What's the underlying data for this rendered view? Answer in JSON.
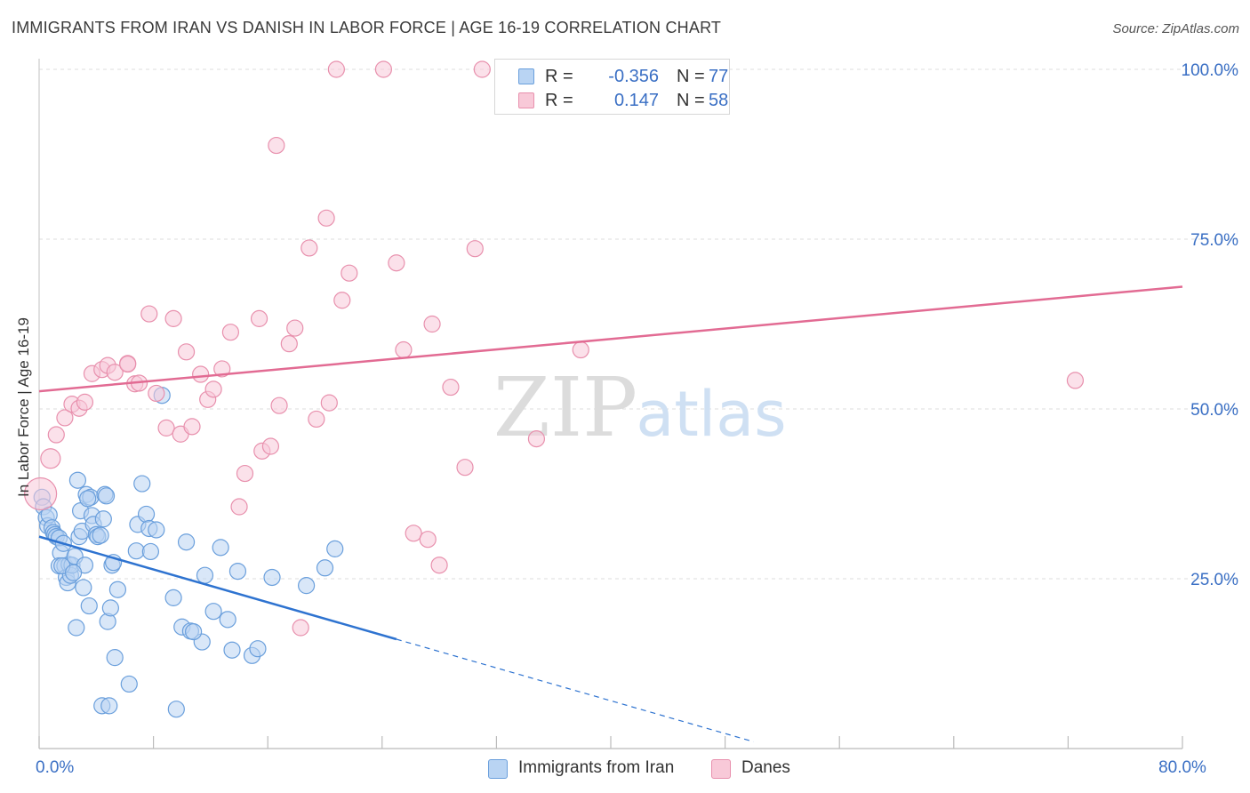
{
  "header": {
    "title": "IMMIGRANTS FROM IRAN VS DANISH IN LABOR FORCE | AGE 16-19 CORRELATION CHART",
    "source": "Source: ZipAtlas.com"
  },
  "watermark": {
    "zip": "ZIP",
    "atlas": "atlas"
  },
  "legend": {
    "r_label": "R =",
    "n_label": "N =",
    "rows": [
      {
        "r": "-0.356",
        "n": "77"
      },
      {
        "r": "0.147",
        "n": "58"
      }
    ]
  },
  "colors": {
    "iran_fill": "#b9d4f3",
    "iran_stroke": "#6a9fdc",
    "iran_line": "#2e73d0",
    "danes_fill": "#f8c9d8",
    "danes_stroke": "#e890ad",
    "danes_line": "#e26b93",
    "tick_label": "#3a6fc4"
  },
  "chart_data": {
    "type": "scatter",
    "xlabel": "",
    "ylabel": "In Labor Force | Age 16-19",
    "xlim": [
      0,
      80
    ],
    "ylim": [
      0,
      105
    ],
    "x_tick_labels": [
      {
        "value": 0,
        "label": "0.0%"
      },
      {
        "value": 80,
        "label": "80.0%"
      }
    ],
    "y_tick_labels": [
      {
        "value": 25,
        "label": "25.0%"
      },
      {
        "value": 50,
        "label": "50.0%"
      },
      {
        "value": 75,
        "label": "75.0%"
      },
      {
        "value": 100,
        "label": "100.0%"
      }
    ],
    "grid": true,
    "legend_position": "top-center",
    "series": [
      {
        "name": "Immigrants from Iran",
        "color": "#6a9fdc",
        "points": [
          [
            0.2,
            37.0
          ],
          [
            0.3,
            35.6
          ],
          [
            0.5,
            34.0
          ],
          [
            0.6,
            32.8
          ],
          [
            0.7,
            34.4
          ],
          [
            0.9,
            32.5
          ],
          [
            1.0,
            31.8
          ],
          [
            1.1,
            31.5
          ],
          [
            1.2,
            31.2
          ],
          [
            1.4,
            31.0
          ],
          [
            1.5,
            28.8
          ],
          [
            1.4,
            26.9
          ],
          [
            1.7,
            30.2
          ],
          [
            1.8,
            26.9
          ],
          [
            1.9,
            25.2
          ],
          [
            2.0,
            24.4
          ],
          [
            2.1,
            27.1
          ],
          [
            2.2,
            25.5
          ],
          [
            2.3,
            27.0
          ],
          [
            2.5,
            28.3
          ],
          [
            2.6,
            17.8
          ],
          [
            2.7,
            39.5
          ],
          [
            2.8,
            31.2
          ],
          [
            2.9,
            35.0
          ],
          [
            3.0,
            32.0
          ],
          [
            3.1,
            23.7
          ],
          [
            3.2,
            27.0
          ],
          [
            3.3,
            37.4
          ],
          [
            3.5,
            21.0
          ],
          [
            3.6,
            37.0
          ],
          [
            3.7,
            34.3
          ],
          [
            3.8,
            33.0
          ],
          [
            4.0,
            31.5
          ],
          [
            4.1,
            31.2
          ],
          [
            4.3,
            31.4
          ],
          [
            4.4,
            6.3
          ],
          [
            4.5,
            33.8
          ],
          [
            4.6,
            37.4
          ],
          [
            4.7,
            37.2
          ],
          [
            4.8,
            18.7
          ],
          [
            4.9,
            6.3
          ],
          [
            5.0,
            20.7
          ],
          [
            5.1,
            27.0
          ],
          [
            5.2,
            27.4
          ],
          [
            5.3,
            13.4
          ],
          [
            5.5,
            23.4
          ],
          [
            6.3,
            9.5
          ],
          [
            6.8,
            29.1
          ],
          [
            6.9,
            33.0
          ],
          [
            7.2,
            39.0
          ],
          [
            7.5,
            34.5
          ],
          [
            7.7,
            32.4
          ],
          [
            7.8,
            29.0
          ],
          [
            8.2,
            32.2
          ],
          [
            8.6,
            52.0
          ],
          [
            9.4,
            22.2
          ],
          [
            9.6,
            5.8
          ],
          [
            10.0,
            17.9
          ],
          [
            10.3,
            30.4
          ],
          [
            10.6,
            17.3
          ],
          [
            11.4,
            15.7
          ],
          [
            11.6,
            25.5
          ],
          [
            12.2,
            20.2
          ],
          [
            12.7,
            29.6
          ],
          [
            13.2,
            19.0
          ],
          [
            13.5,
            14.5
          ],
          [
            13.9,
            26.1
          ],
          [
            14.9,
            13.7
          ],
          [
            15.3,
            14.7
          ],
          [
            16.3,
            25.2
          ],
          [
            18.7,
            24.0
          ],
          [
            20.0,
            26.6
          ],
          [
            20.7,
            29.4
          ],
          [
            10.8,
            17.2
          ],
          [
            1.6,
            26.9
          ],
          [
            2.4,
            25.9
          ],
          [
            3.4,
            36.8
          ]
        ]
      },
      {
        "name": "Danes",
        "color": "#e890ad",
        "points": [
          [
            0.1,
            37.5
          ],
          [
            0.8,
            42.7
          ],
          [
            1.2,
            46.2
          ],
          [
            1.8,
            48.7
          ],
          [
            2.3,
            50.7
          ],
          [
            2.8,
            50.1
          ],
          [
            3.2,
            51.0
          ],
          [
            3.7,
            55.2
          ],
          [
            4.4,
            55.8
          ],
          [
            4.8,
            56.4
          ],
          [
            5.3,
            55.4
          ],
          [
            6.2,
            56.7
          ],
          [
            6.2,
            56.6
          ],
          [
            6.7,
            53.7
          ],
          [
            7.0,
            53.8
          ],
          [
            7.7,
            64.0
          ],
          [
            8.2,
            52.3
          ],
          [
            8.9,
            47.2
          ],
          [
            9.4,
            63.3
          ],
          [
            9.9,
            46.3
          ],
          [
            10.3,
            58.4
          ],
          [
            10.7,
            47.4
          ],
          [
            11.3,
            55.1
          ],
          [
            11.8,
            51.4
          ],
          [
            12.2,
            52.9
          ],
          [
            12.8,
            55.9
          ],
          [
            13.4,
            61.3
          ],
          [
            14.0,
            35.6
          ],
          [
            14.4,
            40.5
          ],
          [
            15.4,
            63.3
          ],
          [
            15.6,
            43.8
          ],
          [
            16.2,
            44.5
          ],
          [
            16.6,
            88.8
          ],
          [
            16.8,
            50.5
          ],
          [
            17.5,
            59.6
          ],
          [
            17.9,
            61.9
          ],
          [
            18.3,
            17.8
          ],
          [
            18.9,
            73.7
          ],
          [
            19.4,
            48.5
          ],
          [
            20.1,
            78.1
          ],
          [
            20.3,
            50.9
          ],
          [
            20.8,
            100.0
          ],
          [
            21.2,
            66.0
          ],
          [
            21.7,
            70.0
          ],
          [
            24.1,
            100.0
          ],
          [
            25.0,
            71.5
          ],
          [
            25.5,
            58.7
          ],
          [
            26.2,
            31.7
          ],
          [
            27.2,
            30.8
          ],
          [
            27.5,
            62.5
          ],
          [
            28.0,
            27.0
          ],
          [
            28.8,
            53.2
          ],
          [
            29.8,
            41.4
          ],
          [
            30.5,
            73.6
          ],
          [
            31.0,
            100.0
          ],
          [
            34.8,
            45.6
          ],
          [
            37.9,
            58.7
          ],
          [
            72.5,
            54.2
          ]
        ]
      }
    ],
    "trendlines": [
      {
        "series": "Immigrants from Iran",
        "x": [
          0,
          25
        ],
        "y": [
          31.2,
          16.1
        ],
        "dashed_to": [
          50,
          1.0
        ]
      },
      {
        "series": "Danes",
        "x": [
          0,
          80
        ],
        "y": [
          52.6,
          68.0
        ]
      }
    ]
  }
}
